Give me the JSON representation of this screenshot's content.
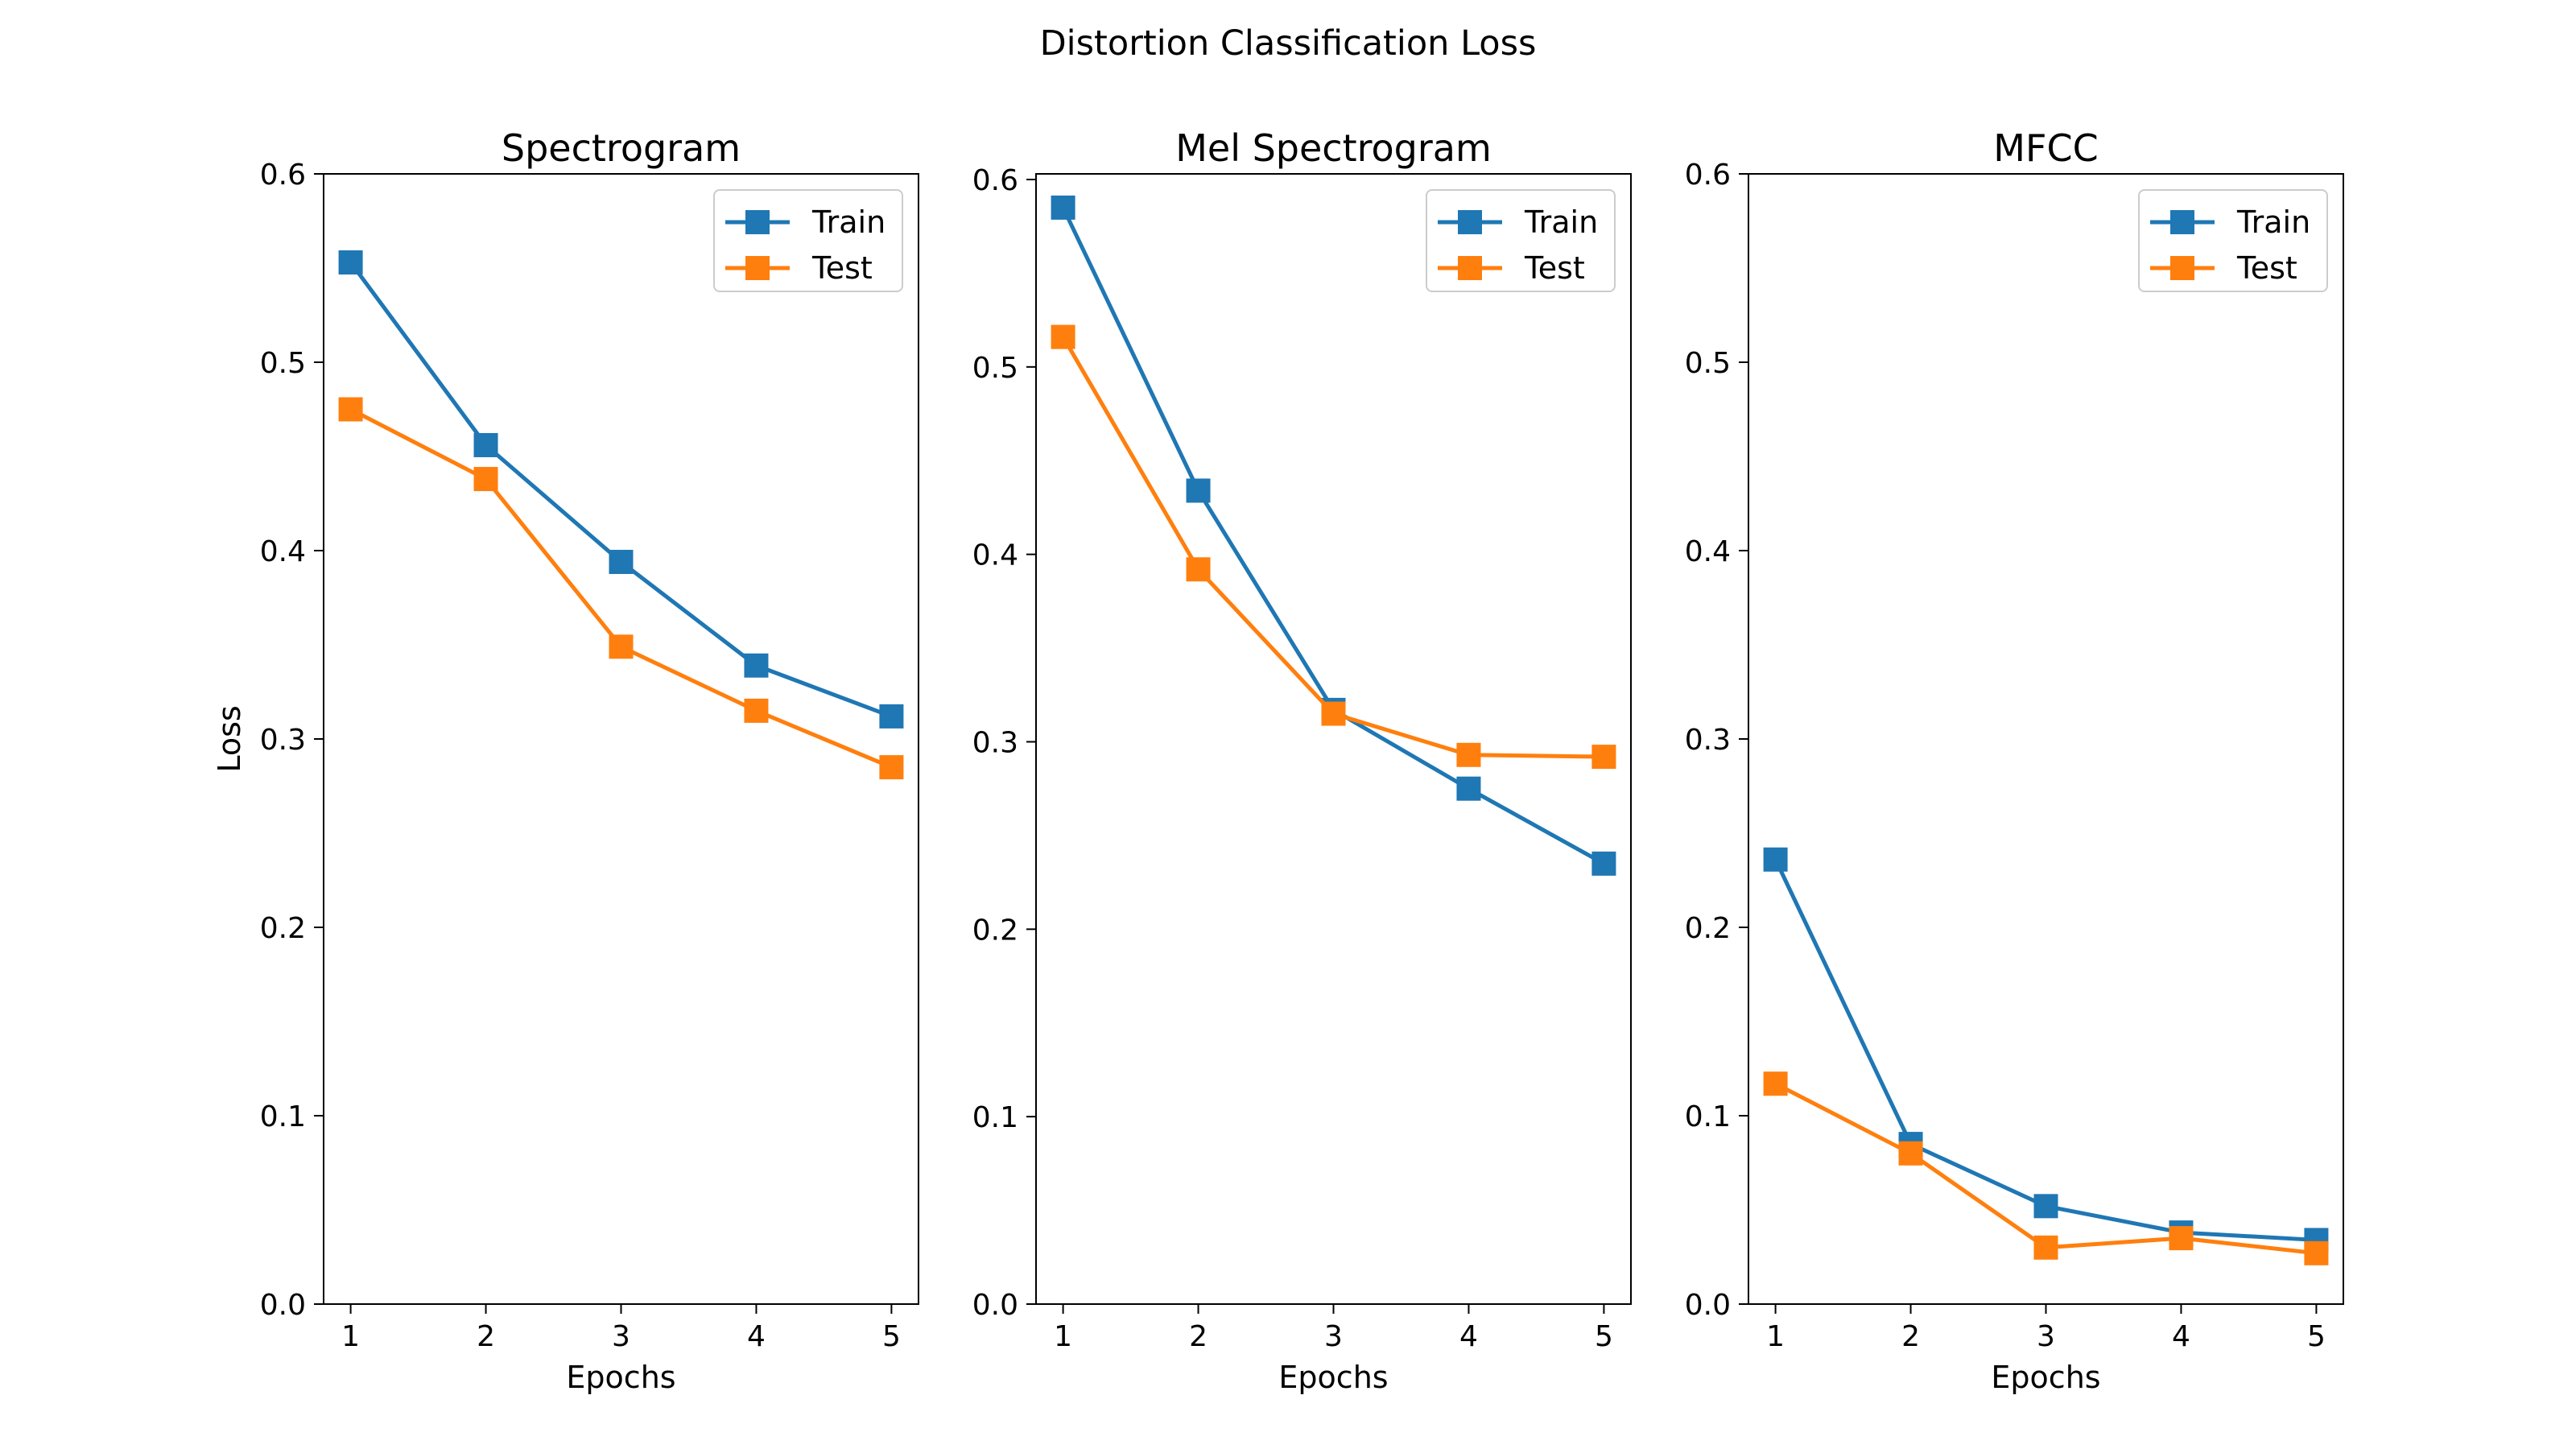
{
  "figure": {
    "title": "Distortion Classification Loss"
  },
  "colors": {
    "train": "#1f77b4",
    "test": "#ff7f0e",
    "axis": "#000000",
    "legend_border": "#cccccc"
  },
  "chart_data": [
    {
      "type": "line",
      "title": "Spectrogram",
      "xlabel": "Epochs",
      "ylabel": "Loss",
      "x": [
        1,
        2,
        3,
        4,
        5
      ],
      "xlim": [
        0.8,
        5.2
      ],
      "ylim": [
        0,
        0.6
      ],
      "yticks": [
        "0.0",
        "0.1",
        "0.2",
        "0.3",
        "0.4",
        "0.5",
        "0.6"
      ],
      "grid": false,
      "legend_position": "top-right",
      "series": [
        {
          "name": "Train",
          "values": [
            0.553,
            0.456,
            0.394,
            0.339,
            0.312
          ]
        },
        {
          "name": "Test",
          "values": [
            0.475,
            0.438,
            0.349,
            0.315,
            0.285
          ]
        }
      ]
    },
    {
      "type": "line",
      "title": "Mel Spectrogram",
      "xlabel": "Epochs",
      "ylabel": "",
      "x": [
        1,
        2,
        3,
        4,
        5
      ],
      "xlim": [
        0.8,
        5.2
      ],
      "ylim": [
        0,
        0.603
      ],
      "yticks": [
        "0.0",
        "0.1",
        "0.2",
        "0.3",
        "0.4",
        "0.5",
        "0.6"
      ],
      "grid": false,
      "legend_position": "top-right",
      "series": [
        {
          "name": "Train",
          "values": [
            0.585,
            0.434,
            0.317,
            0.275,
            0.235
          ]
        },
        {
          "name": "Test",
          "values": [
            0.516,
            0.392,
            0.315,
            0.293,
            0.292
          ]
        }
      ]
    },
    {
      "type": "line",
      "title": "MFCC",
      "xlabel": "Epochs",
      "ylabel": "",
      "x": [
        1,
        2,
        3,
        4,
        5
      ],
      "xlim": [
        0.8,
        5.2
      ],
      "ylim": [
        0,
        0.6
      ],
      "yticks": [
        "0.0",
        "0.1",
        "0.2",
        "0.3",
        "0.4",
        "0.5",
        "0.6"
      ],
      "grid": false,
      "legend_position": "top-right",
      "series": [
        {
          "name": "Train",
          "values": [
            0.236,
            0.085,
            0.052,
            0.038,
            0.034
          ]
        },
        {
          "name": "Test",
          "values": [
            0.117,
            0.08,
            0.03,
            0.035,
            0.027
          ]
        }
      ]
    }
  ]
}
